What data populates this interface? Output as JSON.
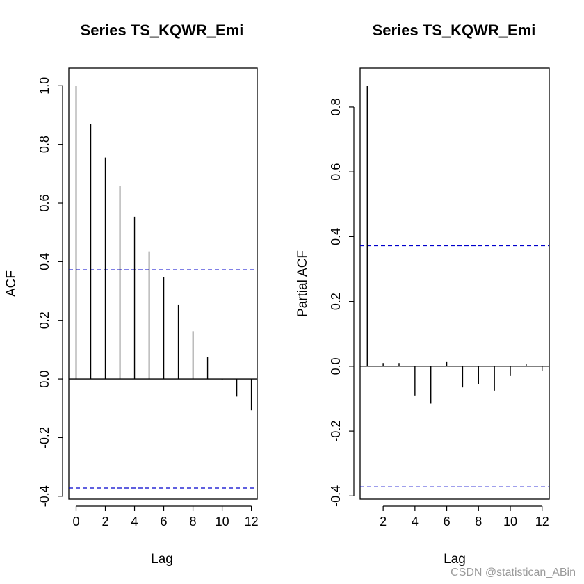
{
  "watermark": "CSDN @statistican_ABin",
  "chart_data": [
    {
      "type": "bar",
      "title": "Series  TS_KQWR_Emi",
      "xlabel": "Lag",
      "ylabel": "ACF",
      "x": [
        0,
        1,
        2,
        3,
        4,
        5,
        6,
        7,
        8,
        9,
        10,
        11,
        12
      ],
      "values": [
        1.0,
        0.868,
        0.755,
        0.658,
        0.553,
        0.435,
        0.347,
        0.254,
        0.163,
        0.075,
        -0.003,
        -0.06,
        -0.107
      ],
      "conf_bounds": [
        0.372,
        -0.372
      ],
      "xlim": [
        -0.5,
        12.4
      ],
      "ylim": [
        -0.41,
        1.06
      ],
      "xticks": [
        0,
        2,
        4,
        6,
        8,
        10,
        12
      ],
      "yticks": [
        -0.4,
        -0.2,
        0.0,
        0.2,
        0.4,
        0.6,
        0.8,
        1.0
      ],
      "ytick_labels": [
        "-0.4",
        "-0.2",
        "0.0",
        "0.2",
        "0.4",
        "0.6",
        "0.8",
        "1.0"
      ],
      "colors": {
        "bars": "#000000",
        "bounds": "#0000cc",
        "zero": "#000000"
      }
    },
    {
      "type": "bar",
      "title": "Series  TS_KQWR_Emi",
      "xlabel": "Lag",
      "ylabel": "Partial ACF",
      "x": [
        1,
        2,
        3,
        4,
        5,
        6,
        7,
        8,
        9,
        10,
        11,
        12
      ],
      "values": [
        0.865,
        0.01,
        0.01,
        -0.09,
        -0.115,
        0.015,
        -0.065,
        -0.055,
        -0.075,
        -0.03,
        0.008,
        -0.015
      ],
      "conf_bounds": [
        0.372,
        -0.372
      ],
      "xlim": [
        0.55,
        12.45
      ],
      "ylim": [
        -0.41,
        0.92
      ],
      "xticks": [
        2,
        4,
        6,
        8,
        10,
        12
      ],
      "yticks": [
        -0.4,
        -0.2,
        0.0,
        0.2,
        0.4,
        0.6,
        0.8
      ],
      "ytick_labels": [
        "-0.4",
        "-0.2",
        "0.0",
        "0.2",
        "0.4",
        "0.6",
        "0.8"
      ],
      "colors": {
        "bars": "#000000",
        "bounds": "#0000cc",
        "zero": "#000000"
      }
    }
  ]
}
